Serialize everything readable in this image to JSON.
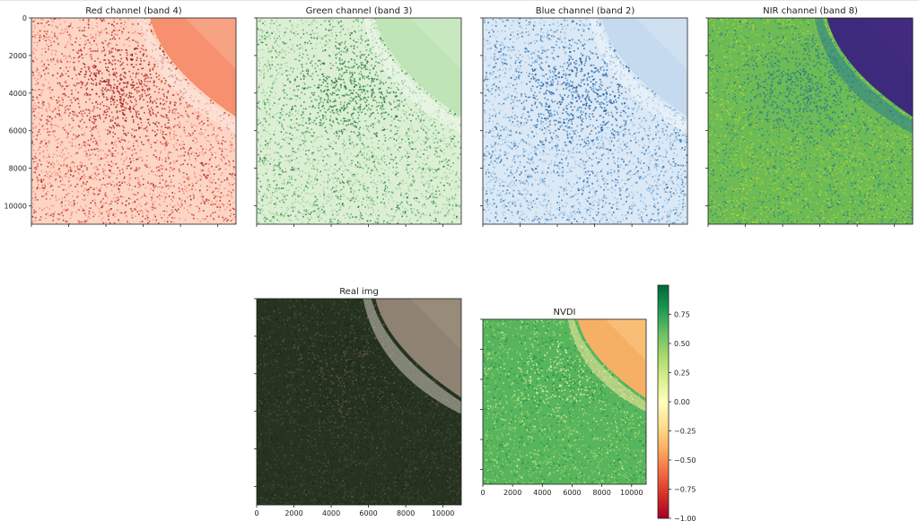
{
  "figure": {
    "panels": [
      {
        "id": "red",
        "title": "Red channel (band 4)",
        "cmap": "Reds",
        "yticks": [
          "0",
          "2000",
          "4000",
          "6000",
          "8000",
          "10000"
        ],
        "xticks": []
      },
      {
        "id": "green",
        "title": "Green channel (band 3)",
        "cmap": "Greens",
        "yticks": [],
        "xticks": []
      },
      {
        "id": "blue",
        "title": "Blue channel (band 2)",
        "cmap": "Blues",
        "yticks": [],
        "xticks": []
      },
      {
        "id": "nir",
        "title": "NIR channel (band 8)",
        "cmap": "viridis",
        "yticks": [],
        "xticks": []
      },
      {
        "id": "real",
        "title": "Real img",
        "cmap": "rgb",
        "yticks": [],
        "xticks": [
          "0",
          "2000",
          "4000",
          "6000",
          "8000",
          "10000"
        ]
      },
      {
        "id": "ndvi",
        "title": "NVDI",
        "cmap": "RdYlGn",
        "yticks": [],
        "xticks": [
          "0",
          "2000",
          "4000",
          "6000",
          "8000",
          "10000"
        ]
      }
    ],
    "colorbar": {
      "cmap": "RdYlGn",
      "range": [
        -1.0,
        1.0
      ],
      "ticks": [
        "0.75",
        "0.50",
        "0.25",
        "0.00",
        "−0.25",
        "−0.50",
        "−0.75",
        "−1.00"
      ]
    }
  },
  "chart_data": [
    {
      "type": "heatmap",
      "title": "Red channel (band 4)",
      "colormap": "Reds",
      "ylim": [
        10980,
        0
      ],
      "yticks": [
        0,
        2000,
        4000,
        6000,
        8000,
        10000
      ]
    },
    {
      "type": "heatmap",
      "title": "Green channel (band 3)",
      "colormap": "Greens",
      "ylim": [
        10980,
        0
      ]
    },
    {
      "type": "heatmap",
      "title": "Blue channel (band 2)",
      "colormap": "Blues",
      "ylim": [
        10980,
        0
      ]
    },
    {
      "type": "heatmap",
      "title": "NIR channel (band 8)",
      "colormap": "viridis",
      "ylim": [
        10980,
        0
      ]
    },
    {
      "type": "heatmap",
      "title": "Real img",
      "colormap": "rgb",
      "xlim": [
        0,
        10980
      ],
      "xticks": [
        0,
        2000,
        4000,
        6000,
        8000,
        10000
      ]
    },
    {
      "type": "heatmap",
      "title": "NVDI",
      "colormap": "RdYlGn",
      "xlim": [
        0,
        10980
      ],
      "xticks": [
        0,
        2000,
        4000,
        6000,
        8000,
        10000
      ],
      "colorbar_range": [
        -1.0,
        1.0
      ],
      "colorbar_ticks": [
        0.75,
        0.5,
        0.25,
        0.0,
        -0.25,
        -0.5,
        -0.75,
        -1.0
      ]
    }
  ]
}
